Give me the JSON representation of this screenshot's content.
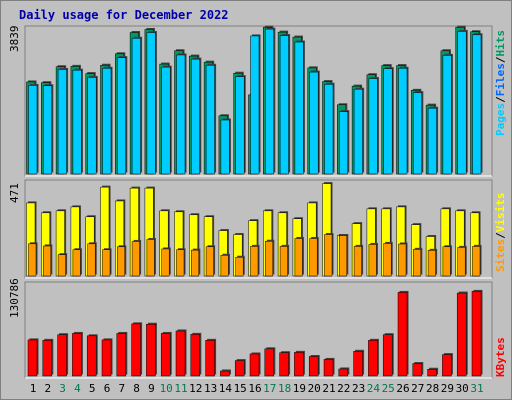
{
  "header": {
    "title": "Daily usage for December 2022"
  },
  "chart_data": [
    {
      "type": "bar",
      "title": "Daily usage for December 2022",
      "categories": [
        "1",
        "2",
        "3",
        "4",
        "5",
        "6",
        "7",
        "8",
        "9",
        "10",
        "11",
        "12",
        "13",
        "14",
        "15",
        "16",
        "17",
        "18",
        "19",
        "20",
        "21",
        "22",
        "23",
        "24",
        "25",
        "26",
        "27",
        "28",
        "29",
        "30",
        "31"
      ],
      "weekend_days": [
        "3",
        "4",
        "10",
        "11",
        "17",
        "18",
        "24",
        "25",
        "31"
      ],
      "y_tick": "3839",
      "ylim": [
        0,
        3839
      ],
      "legend": [
        "Pages",
        "Files",
        "Hits"
      ],
      "series": [
        {
          "name": "Hits",
          "values": [
            2420,
            2400,
            2820,
            2830,
            2640,
            2860,
            3160,
            3720,
            3800,
            2890,
            3240,
            3100,
            2940,
            1530,
            2650,
            2080,
            3860,
            3730,
            3600,
            2790,
            2430,
            1820,
            2310,
            2610,
            2850,
            2850,
            2200,
            1810,
            3240,
            3860,
            3740
          ]
        },
        {
          "name": "Files",
          "values": [
            2330,
            2320,
            2750,
            2730,
            2540,
            2780,
            3060,
            3570,
            3720,
            2810,
            3130,
            3020,
            2860,
            1420,
            2560,
            3630,
            3810,
            3640,
            3470,
            2680,
            2360,
            1640,
            2230,
            2510,
            2770,
            2780,
            2140,
            1730,
            3120,
            3750,
            3660
          ]
        }
      ],
      "colors": {
        "Hits": "#009966",
        "Files": "#00ccff",
        "Pages": "#0066ff"
      }
    },
    {
      "type": "bar",
      "categories": [
        "1",
        "2",
        "3",
        "4",
        "5",
        "6",
        "7",
        "8",
        "9",
        "10",
        "11",
        "12",
        "13",
        "14",
        "15",
        "16",
        "17",
        "18",
        "19",
        "20",
        "21",
        "22",
        "23",
        "24",
        "25",
        "26",
        "27",
        "28",
        "29",
        "30",
        "31"
      ],
      "y_tick": "471",
      "ylim": [
        0,
        471
      ],
      "legend": [
        "Sites",
        "Visits"
      ],
      "series": [
        {
          "name": "Visits",
          "values": [
            370,
            320,
            330,
            350,
            300,
            450,
            380,
            445,
            445,
            330,
            325,
            310,
            300,
            230,
            210,
            280,
            330,
            320,
            290,
            370,
            468,
            205,
            265,
            340,
            340,
            350,
            260,
            200,
            340,
            330,
            320
          ]
        },
        {
          "name": "Sites",
          "values": [
            163,
            152,
            108,
            133,
            163,
            133,
            148,
            175,
            185,
            137,
            133,
            131,
            148,
            105,
            95,
            150,
            176,
            150,
            190,
            190,
            210,
            205,
            150,
            160,
            165,
            162,
            135,
            130,
            148,
            145,
            150
          ]
        }
      ],
      "colors": {
        "Visits": "#ffff00",
        "Sites": "#ff9900"
      }
    },
    {
      "type": "bar",
      "categories": [
        "1",
        "2",
        "3",
        "4",
        "5",
        "6",
        "7",
        "8",
        "9",
        "10",
        "11",
        "12",
        "13",
        "14",
        "15",
        "16",
        "17",
        "18",
        "19",
        "20",
        "21",
        "22",
        "23",
        "24",
        "25",
        "26",
        "27",
        "28",
        "29",
        "30",
        "31"
      ],
      "y_tick": "130786",
      "ylim": [
        0,
        130786
      ],
      "legend": [
        "KBytes"
      ],
      "series": [
        {
          "name": "KBytes",
          "values": [
            51300,
            50700,
            58700,
            60500,
            57100,
            51300,
            60500,
            74100,
            73600,
            60500,
            64000,
            59200,
            50700,
            7100,
            21900,
            31300,
            38600,
            33100,
            33600,
            27700,
            23600,
            10000,
            35100,
            50700,
            58700,
            118800,
            17700,
            9600,
            30400,
            117900,
            120300
          ]
        }
      ],
      "colors": {
        "KBytes": "#ff0000"
      }
    }
  ]
}
